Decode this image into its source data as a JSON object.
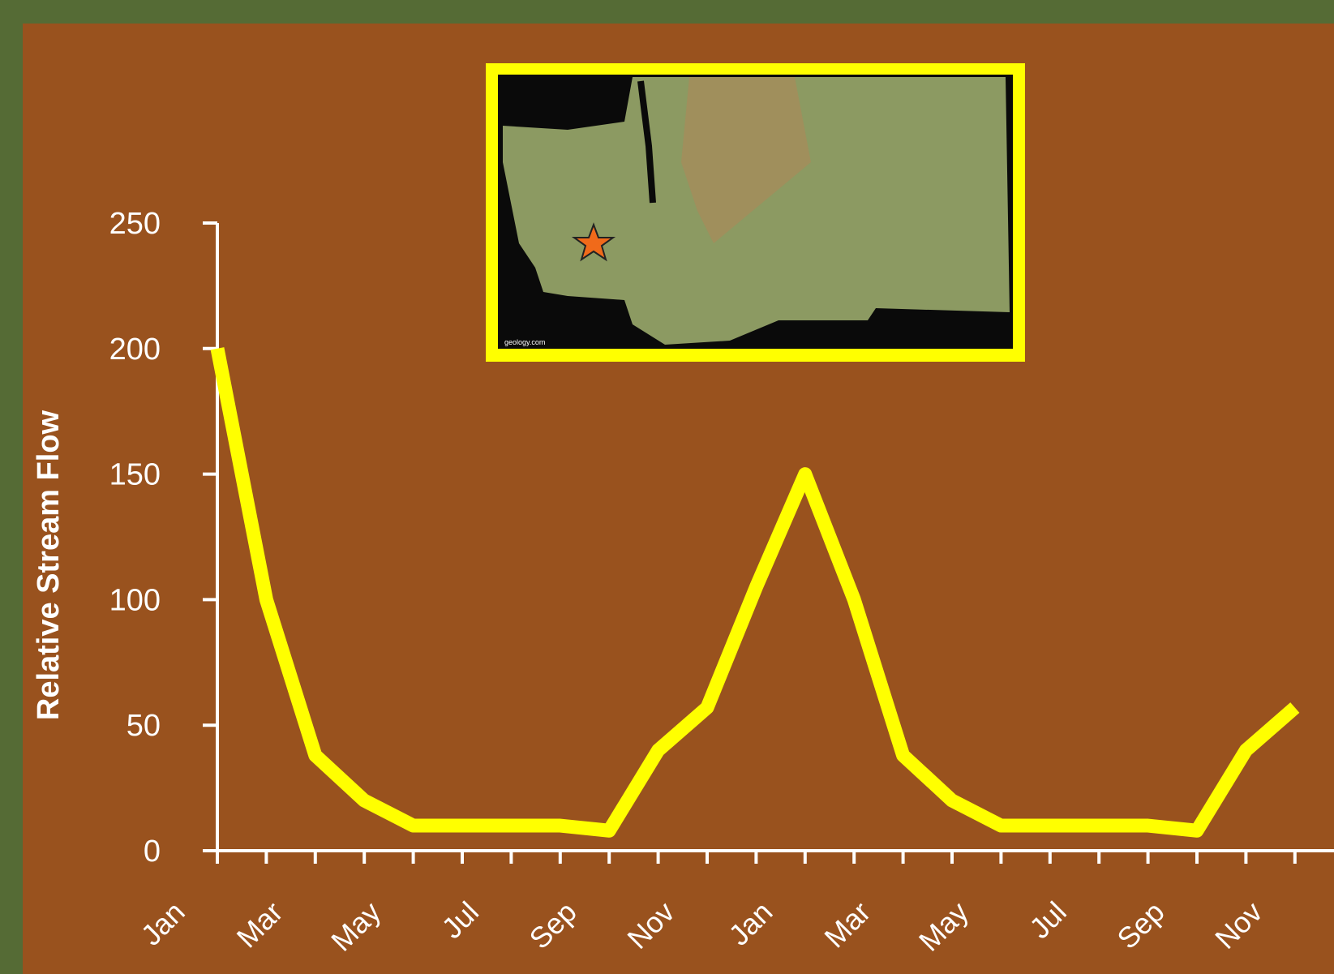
{
  "chart_data": {
    "type": "line",
    "y_label": "Relative Stream Flow",
    "categories": [
      "Jan",
      null,
      "Mar",
      null,
      "May",
      null,
      "Jul",
      null,
      "Sep",
      null,
      "Nov",
      null,
      "Jan",
      null,
      "Mar",
      null,
      "May",
      null,
      "Jul",
      null,
      "Sep",
      null,
      "Nov"
    ],
    "values": [
      200,
      100,
      38,
      20,
      10,
      10,
      10,
      10,
      8,
      40,
      57,
      105,
      150,
      100,
      38,
      20,
      10,
      10,
      10,
      10,
      8,
      40,
      57
    ],
    "color": "#ffff00",
    "ylim": [
      0,
      250
    ],
    "yticks": [
      0,
      50,
      100,
      150,
      200,
      250
    ]
  },
  "map": {
    "credit": "geology.com"
  }
}
